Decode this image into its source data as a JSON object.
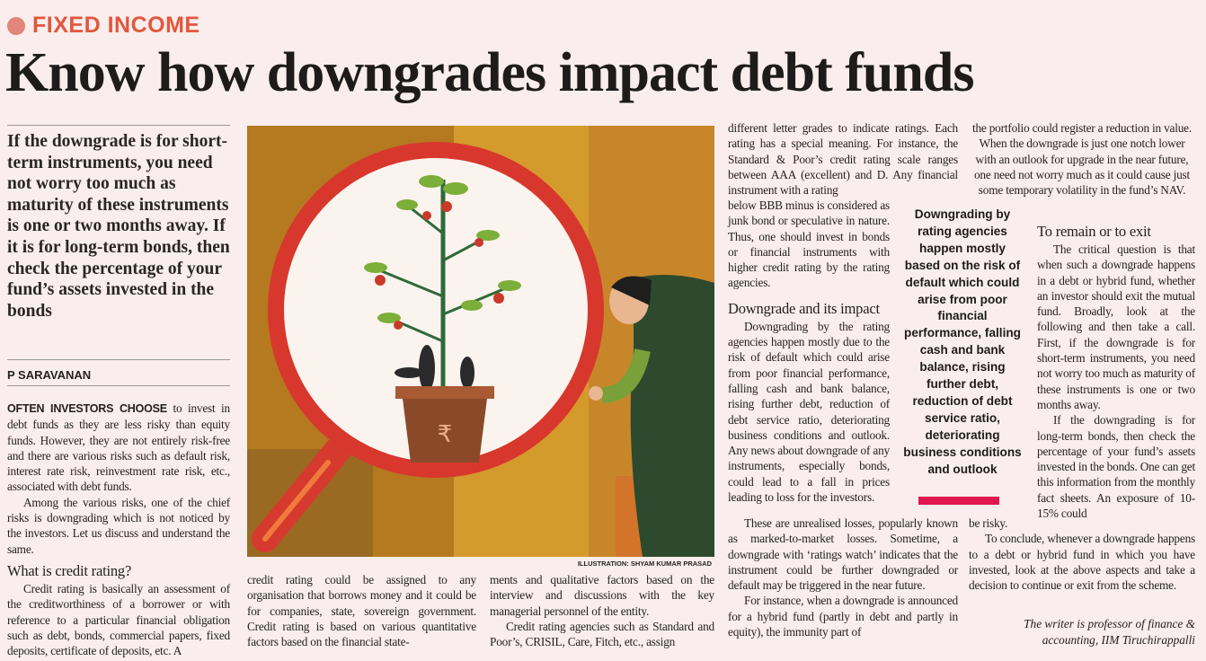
{
  "section": {
    "kicker": "FIXED INCOME"
  },
  "headline": "Know how downgrades impact debt funds",
  "pull_quote": "If the downgrade is for short-term instruments, you need not worry too much as maturity of these instruments is one or two months away.  If it is for long-term bonds, then check the percentage of your fund’s assets invested in the bonds",
  "byline": "P SARAVANAN",
  "illustration": {
    "credit": "ILLUSTRATION: SHYAM KUMAR PRASAD",
    "currency_symbol": "₹"
  },
  "colors": {
    "kicker": "#e2573c",
    "accent_bar": "#e0174f",
    "background": "#f9eded"
  },
  "col1": {
    "lead": "OFTEN INVESTORS CHOOSE",
    "p1": " to invest in debt funds as they are less risky than equity funds. However, they are not entirely risk-free and there are various risks such as default risk, interest rate risk, reinvestment rate risk, etc., associated with debt funds.",
    "p2": "Among the various risks, one of the chief risks is downgrading which is not noticed by the investors. Let us discuss and understand the same.",
    "h1": "What is credit rating?",
    "p3": "Credit rating is basically an assessment of the creditworthiness of a borrower or with reference to a particular financial obligation such as debt, bonds, commercial papers, fixed deposits, certificate of deposits, etc. A"
  },
  "col2": {
    "p1": "credit rating could be assigned to any organisation that borrows money and it could be for companies, state, sovereign government. Credit rating is based on various quantitative factors based on the financial state-"
  },
  "col3": {
    "p1": "ments and qualitative factors based on the interview and discussions with the key managerial personnel of the entity.",
    "p2": "Credit rating agencies such as Standard and Poor’s, CRISIL, Care, Fitch, etc., assign"
  },
  "col4": {
    "p1a": "different letter grades to indicate ratings. Each rating has a special meaning. For instance, the Standard & Poor’s credit rating scale ranges between AAA (excellent) and D. Any financial instrument with a rating",
    "p1b": "below BBB minus is considered as junk bond or speculative in nature. Thus, one should invest in bonds or financial instruments with higher credit rating by the rating agencies.",
    "h1": "Downgrade and its impact",
    "p2": "Downgrading by the rating agencies happen mostly due to the risk of default which could arise from poor financial performance, falling cash and bank balance, rising further debt, reduction of debt service ratio, deteriorating business conditions and outlook. Any news about downgrade of any instruments, especially bonds, could lead to a fall in prices leading to loss for the investors.",
    "p3": "These are unrealised losses, popularly known as marked-to-market losses. Sometime, a downgrade with ‘ratings watch’ indicates that the instrument could be further downgraded or default may be triggered in the near future.",
    "p4": "For instance, when a downgrade is announced for a hybrid fund (partly in debt and partly in equity), the immunity part of"
  },
  "col5": {
    "p1a": "the portfolio could register a reduction in value. When the downgrade is just one notch lower with an outlook for upgrade in the near future, one need not worry much as it could cause just some temporary volatility",
    "p1b": "in the fund’s NAV.",
    "h1": "To remain or to exit",
    "p2": "The critical question is that when such a downgrade happens in a debt or hybrid fund, whether an investor should exit the mutual fund. Broadly, look at the following and then take a call. First, if the downgrade is for short-term instruments, you need not worry too much as maturity of these instruments is one or two months away.",
    "p3": "If the downgrading is for long-term bonds, then check the percentage of your fund’s assets invested in the bonds. One can get this information from the monthly fact sheets. An exposure of 10-15% could",
    "p3b": "be risky.",
    "p4": "To conclude, whenever a downgrade happens to a debt or hybrid fund in which you have invested, look at the above aspects and take a decision to continue or exit from the scheme."
  },
  "callout": "Downgrading by rating agencies happen mostly based on the risk of default which could arise from poor financial performance, falling cash and bank balance, rising further debt, reduction of debt service ratio, deteriorating business conditions and outlook",
  "writer_note": "The writer is professor of finance & accounting, IIM Tiruchirappalli"
}
